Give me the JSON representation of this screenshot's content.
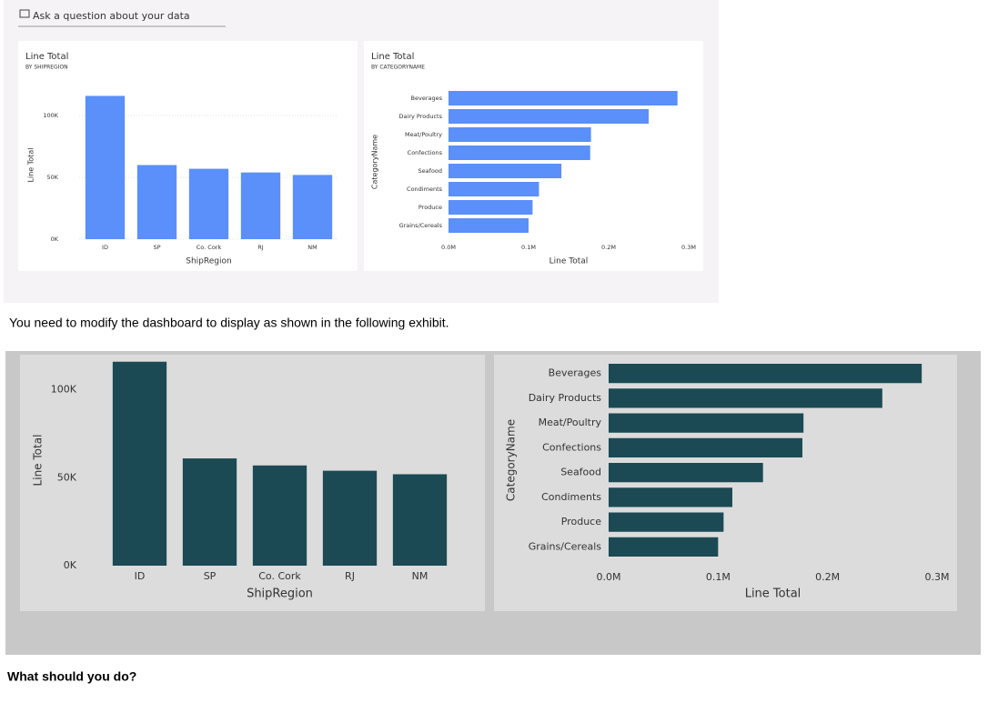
{
  "qa_prompt": "Ask a question about your data",
  "instruction": "You need to modify the dashboard to display as shown in the following exhibit.",
  "question": "What should you do?",
  "chart_data": [
    {
      "type": "column",
      "title": "Line Total",
      "subtitle": "BY SHIPREGION",
      "x_label": "ShipRegion",
      "y_label": "Line Total",
      "categories": [
        "ID",
        "SP",
        "Co. Cork",
        "RJ",
        "NM"
      ],
      "values": [
        116000,
        60000,
        57000,
        54000,
        52000
      ],
      "color": "#5b8ff9",
      "ylim": [
        0,
        120000
      ],
      "yticks": [
        {
          "value": 0,
          "label": "0K"
        },
        {
          "value": 50000,
          "label": "50K"
        },
        {
          "value": 100000,
          "label": "100K"
        }
      ],
      "grid": true
    },
    {
      "type": "bar",
      "title": "Line Total",
      "subtitle": "BY CATEGORYNAME",
      "x_label": "Line Total",
      "y_label": "CategoryName",
      "categories": [
        "Beverages",
        "Dairy Products",
        "Meat/Poultry",
        "Confections",
        "Seafood",
        "Condiments",
        "Produce",
        "Grains/Cereals"
      ],
      "values": [
        286000,
        250000,
        178000,
        177000,
        141000,
        113000,
        105000,
        100000
      ],
      "color": "#5b8ff9",
      "xlim": [
        0,
        300000
      ],
      "xticks": [
        {
          "value": 0,
          "label": "0.0M"
        },
        {
          "value": 100000,
          "label": "0.1M"
        },
        {
          "value": 200000,
          "label": "0.2M"
        },
        {
          "value": 300000,
          "label": "0.3M"
        }
      ],
      "grid": false
    },
    {
      "type": "column",
      "x_label": "ShipRegion",
      "y_label": "Line Total",
      "categories": [
        "ID",
        "SP",
        "Co. Cork",
        "RJ",
        "NM"
      ],
      "values": [
        116000,
        61000,
        57000,
        54000,
        52000
      ],
      "color": "#1b4a54",
      "ylim": [
        0,
        120000
      ],
      "yticks": [
        {
          "value": 0,
          "label": "0K"
        },
        {
          "value": 50000,
          "label": "50K"
        },
        {
          "value": 100000,
          "label": "100K"
        }
      ],
      "grid": false
    },
    {
      "type": "bar",
      "x_label": "Line Total",
      "y_label": "CategoryName",
      "categories": [
        "Beverages",
        "Dairy Products",
        "Meat/Poultry",
        "Confections",
        "Seafood",
        "Condiments",
        "Produce",
        "Grains/Cereals"
      ],
      "values": [
        286000,
        250000,
        178000,
        177000,
        141000,
        113000,
        105000,
        100000
      ],
      "color": "#1b4a54",
      "xlim": [
        0,
        300000
      ],
      "xticks": [
        {
          "value": 0,
          "label": "0.0M"
        },
        {
          "value": 100000,
          "label": "0.1M"
        },
        {
          "value": 200000,
          "label": "0.2M"
        },
        {
          "value": 300000,
          "label": "0.3M"
        }
      ],
      "grid": false
    }
  ]
}
